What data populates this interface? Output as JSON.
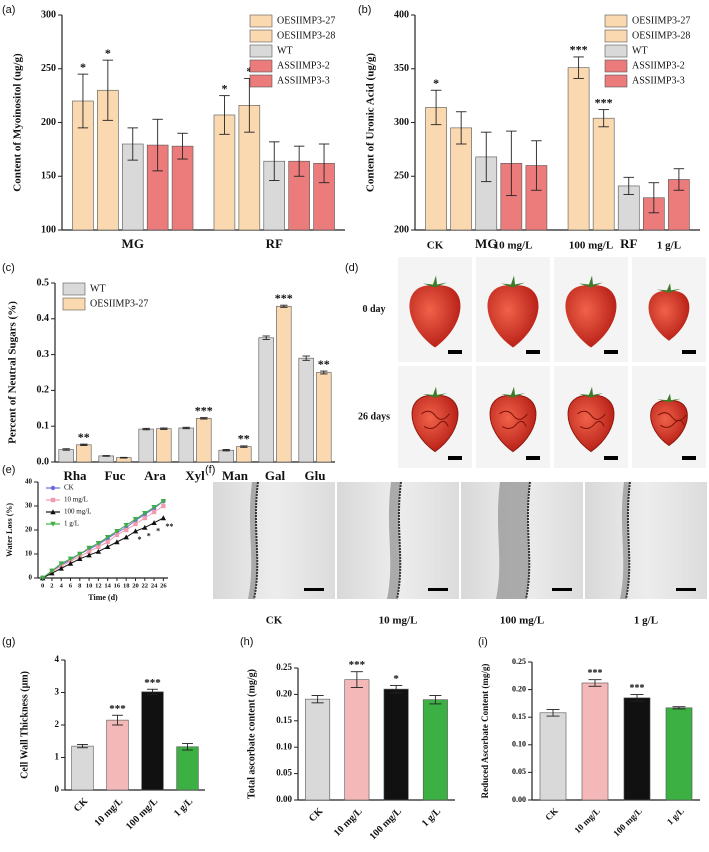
{
  "chart_data": [
    {
      "panel": "(a)",
      "type": "bar",
      "ylabel": "Content of Myoinositol (ug/g)",
      "categories": [
        "MG",
        "RF"
      ],
      "series": [
        {
          "name": "OESIIMP3-27",
          "color": "#fbd9b0",
          "values": [
            220,
            207
          ],
          "errors": [
            25,
            18
          ],
          "annotations": [
            "*",
            "*"
          ]
        },
        {
          "name": "OESIIMP3-28",
          "color": "#fbd9b0",
          "values": [
            230,
            216
          ],
          "errors": [
            28,
            25
          ],
          "annotations": [
            "*",
            "*"
          ]
        },
        {
          "name": "WT",
          "color": "#d9d9d9",
          "values": [
            180,
            164
          ],
          "errors": [
            15,
            18
          ]
        },
        {
          "name": "ASSIIMP3-2",
          "color": "#ec7c7c",
          "values": [
            179,
            164
          ],
          "errors": [
            24,
            14
          ]
        },
        {
          "name": "ASSIIMP3-3",
          "color": "#ec7c7c",
          "values": [
            178,
            162
          ],
          "errors": [
            12,
            18
          ]
        }
      ],
      "ylim": [
        100,
        300
      ],
      "yticks": [
        100,
        150,
        200,
        250,
        300
      ],
      "legend": "upper right"
    },
    {
      "panel": "(b)",
      "type": "bar",
      "ylabel": "Content of Uronic Acid (ug/g)",
      "categories": [
        "MG",
        "RF"
      ],
      "series": [
        {
          "name": "OESIIMP3-27",
          "color": "#fbd9b0",
          "values": [
            314,
            351
          ],
          "errors": [
            16,
            10
          ],
          "annotations": [
            "*",
            "***"
          ]
        },
        {
          "name": "OESIIMP3-28",
          "color": "#fbd9b0",
          "values": [
            295,
            304
          ],
          "errors": [
            15,
            8
          ],
          "annotations": [
            null,
            "***"
          ]
        },
        {
          "name": "WT",
          "color": "#d9d9d9",
          "values": [
            268,
            241
          ],
          "errors": [
            23,
            8
          ]
        },
        {
          "name": "ASSIIMP3-2",
          "color": "#ec7c7c",
          "values": [
            262,
            230
          ],
          "errors": [
            30,
            14
          ]
        },
        {
          "name": "ASSIIMP3-3",
          "color": "#ec7c7c",
          "values": [
            260,
            247
          ],
          "errors": [
            23,
            10
          ]
        }
      ],
      "ylim": [
        200,
        400
      ],
      "yticks": [
        200,
        250,
        300,
        350,
        400
      ],
      "legend": "upper right"
    },
    {
      "panel": "(c)",
      "type": "bar",
      "ylabel": "Percent of Neutral Sugars (%)",
      "categories": [
        "Rha",
        "Fuc",
        "Ara",
        "Xyl",
        "Man",
        "Gal",
        "Glu"
      ],
      "series": [
        {
          "name": "WT",
          "color": "#d9d9d9",
          "values": [
            0.035,
            0.017,
            0.092,
            0.095,
            0.033,
            0.347,
            0.29
          ],
          "errors": [
            0.002,
            0.001,
            0.002,
            0.002,
            0.002,
            0.005,
            0.006
          ]
        },
        {
          "name": "OESIIMP3-27",
          "color": "#fbd9b0",
          "values": [
            0.048,
            0.012,
            0.093,
            0.122,
            0.043,
            0.435,
            0.25
          ],
          "errors": [
            0.002,
            0.001,
            0.002,
            0.002,
            0.002,
            0.003,
            0.004
          ],
          "annotations": [
            "**",
            null,
            null,
            "***",
            "**",
            "***",
            "**"
          ]
        }
      ],
      "ylim": [
        0,
        0.5
      ],
      "yticks": [
        {
          "value": 0,
          "label": "0.0"
        },
        0.1,
        0.2,
        0.3,
        0.4,
        0.5
      ],
      "legend": "upper left"
    },
    {
      "panel": "(e)",
      "type": "line",
      "ylabel": "Water Loss (%)",
      "xlabel": "Time (d)",
      "x": [
        0,
        2,
        4,
        6,
        8,
        10,
        12,
        14,
        16,
        18,
        20,
        22,
        24,
        26
      ],
      "series": [
        {
          "name": "CK",
          "color": "#6a6ad8",
          "marker": "circle",
          "values": [
            0,
            3,
            5.5,
            7.5,
            10,
            12,
            14,
            16.5,
            19,
            21,
            24,
            26.5,
            29,
            32
          ]
        },
        {
          "name": "10 mg/L",
          "color": "#f29bb0",
          "marker": "square",
          "values": [
            0,
            2.5,
            5,
            7,
            9,
            11,
            13,
            15,
            18,
            20,
            22.5,
            25,
            27.5,
            30
          ]
        },
        {
          "name": "100 mg/L",
          "color": "#111111",
          "marker": "triangle",
          "values": [
            0,
            2,
            4,
            6,
            8,
            9.5,
            11,
            13,
            15,
            17,
            19.5,
            21,
            23,
            25
          ],
          "annotations": [
            null,
            null,
            null,
            null,
            null,
            null,
            null,
            null,
            null,
            null,
            "*",
            "*",
            "*",
            "**"
          ]
        },
        {
          "name": "1 g/L",
          "color": "#3cb043",
          "marker": "triangle-down",
          "values": [
            0,
            3,
            6,
            8,
            10,
            12.5,
            14.5,
            17,
            19.5,
            22,
            24.5,
            27,
            29.5,
            32
          ]
        }
      ],
      "xlim": [
        -1,
        27
      ],
      "xticks": [
        0,
        2,
        4,
        6,
        8,
        10,
        12,
        14,
        16,
        18,
        20,
        22,
        24,
        26
      ],
      "ylim": [
        0,
        40
      ],
      "yticks": [
        0,
        10,
        20,
        30,
        40
      ],
      "legend": "upper left"
    },
    {
      "panel": "(g)",
      "type": "bar",
      "ylabel": "Cell Wall Thickness (μm)",
      "categories": [
        "CK",
        "10 mg/L",
        "100 mg/L",
        "1 g/L"
      ],
      "colors": [
        "#d9d9d9",
        "#f4b8b8",
        "#111111",
        "#3cb043"
      ],
      "values": [
        1.35,
        2.15,
        3.02,
        1.33
      ],
      "errors": [
        0.05,
        0.15,
        0.08,
        0.1
      ],
      "annotations": [
        null,
        "***",
        "***",
        null
      ],
      "ylim": [
        0,
        4
      ],
      "yticks": [
        0,
        1,
        2,
        3,
        4
      ]
    },
    {
      "panel": "(h)",
      "type": "bar",
      "ylabel": "Total ascorbate content (mg/g)",
      "categories": [
        "CK",
        "10 mg/L",
        "100 mg/L",
        "1 g/L"
      ],
      "colors": [
        "#d9d9d9",
        "#f4b8b8",
        "#111111",
        "#3cb043"
      ],
      "values": [
        0.191,
        0.228,
        0.21,
        0.19
      ],
      "errors": [
        0.007,
        0.015,
        0.007,
        0.008
      ],
      "annotations": [
        null,
        "***",
        "*",
        null
      ],
      "ylim": [
        0,
        0.25
      ],
      "yticks": [
        {
          "value": 0,
          "label": "0.00"
        },
        0.05,
        {
          "value": 0.1,
          "label": "0.10"
        },
        0.15,
        {
          "value": 0.2,
          "label": "0.20"
        },
        0.25
      ]
    },
    {
      "panel": "(i)",
      "type": "bar",
      "ylabel": "Reduced Ascorbate Content (mg/g)",
      "categories": [
        "CK",
        "10 mg/L",
        "100 mg/L",
        "1 g/L"
      ],
      "colors": [
        "#d9d9d9",
        "#f4b8b8",
        "#111111",
        "#3cb043"
      ],
      "values": [
        0.158,
        0.212,
        0.185,
        0.167
      ],
      "errors": [
        0.006,
        0.006,
        0.006,
        0.002
      ],
      "annotations": [
        null,
        "***",
        "***",
        null
      ],
      "ylim": [
        0,
        0.25
      ],
      "yticks": [
        {
          "value": 0,
          "label": "0.00"
        },
        0.05,
        {
          "value": 0.1,
          "label": "0.10"
        },
        0.15,
        {
          "value": 0.2,
          "label": "0.20"
        },
        0.25
      ]
    }
  ],
  "photo_panels": [
    {
      "panel": "(d)",
      "columns": [
        "CK",
        "10 mg/L",
        "100 mg/L",
        "1 g/L"
      ],
      "rows": [
        "0 day",
        "26 days"
      ]
    },
    {
      "panel": "(f)",
      "columns": [
        "CK",
        "10 mg/L",
        "100 mg/L",
        "1 g/L"
      ]
    }
  ]
}
